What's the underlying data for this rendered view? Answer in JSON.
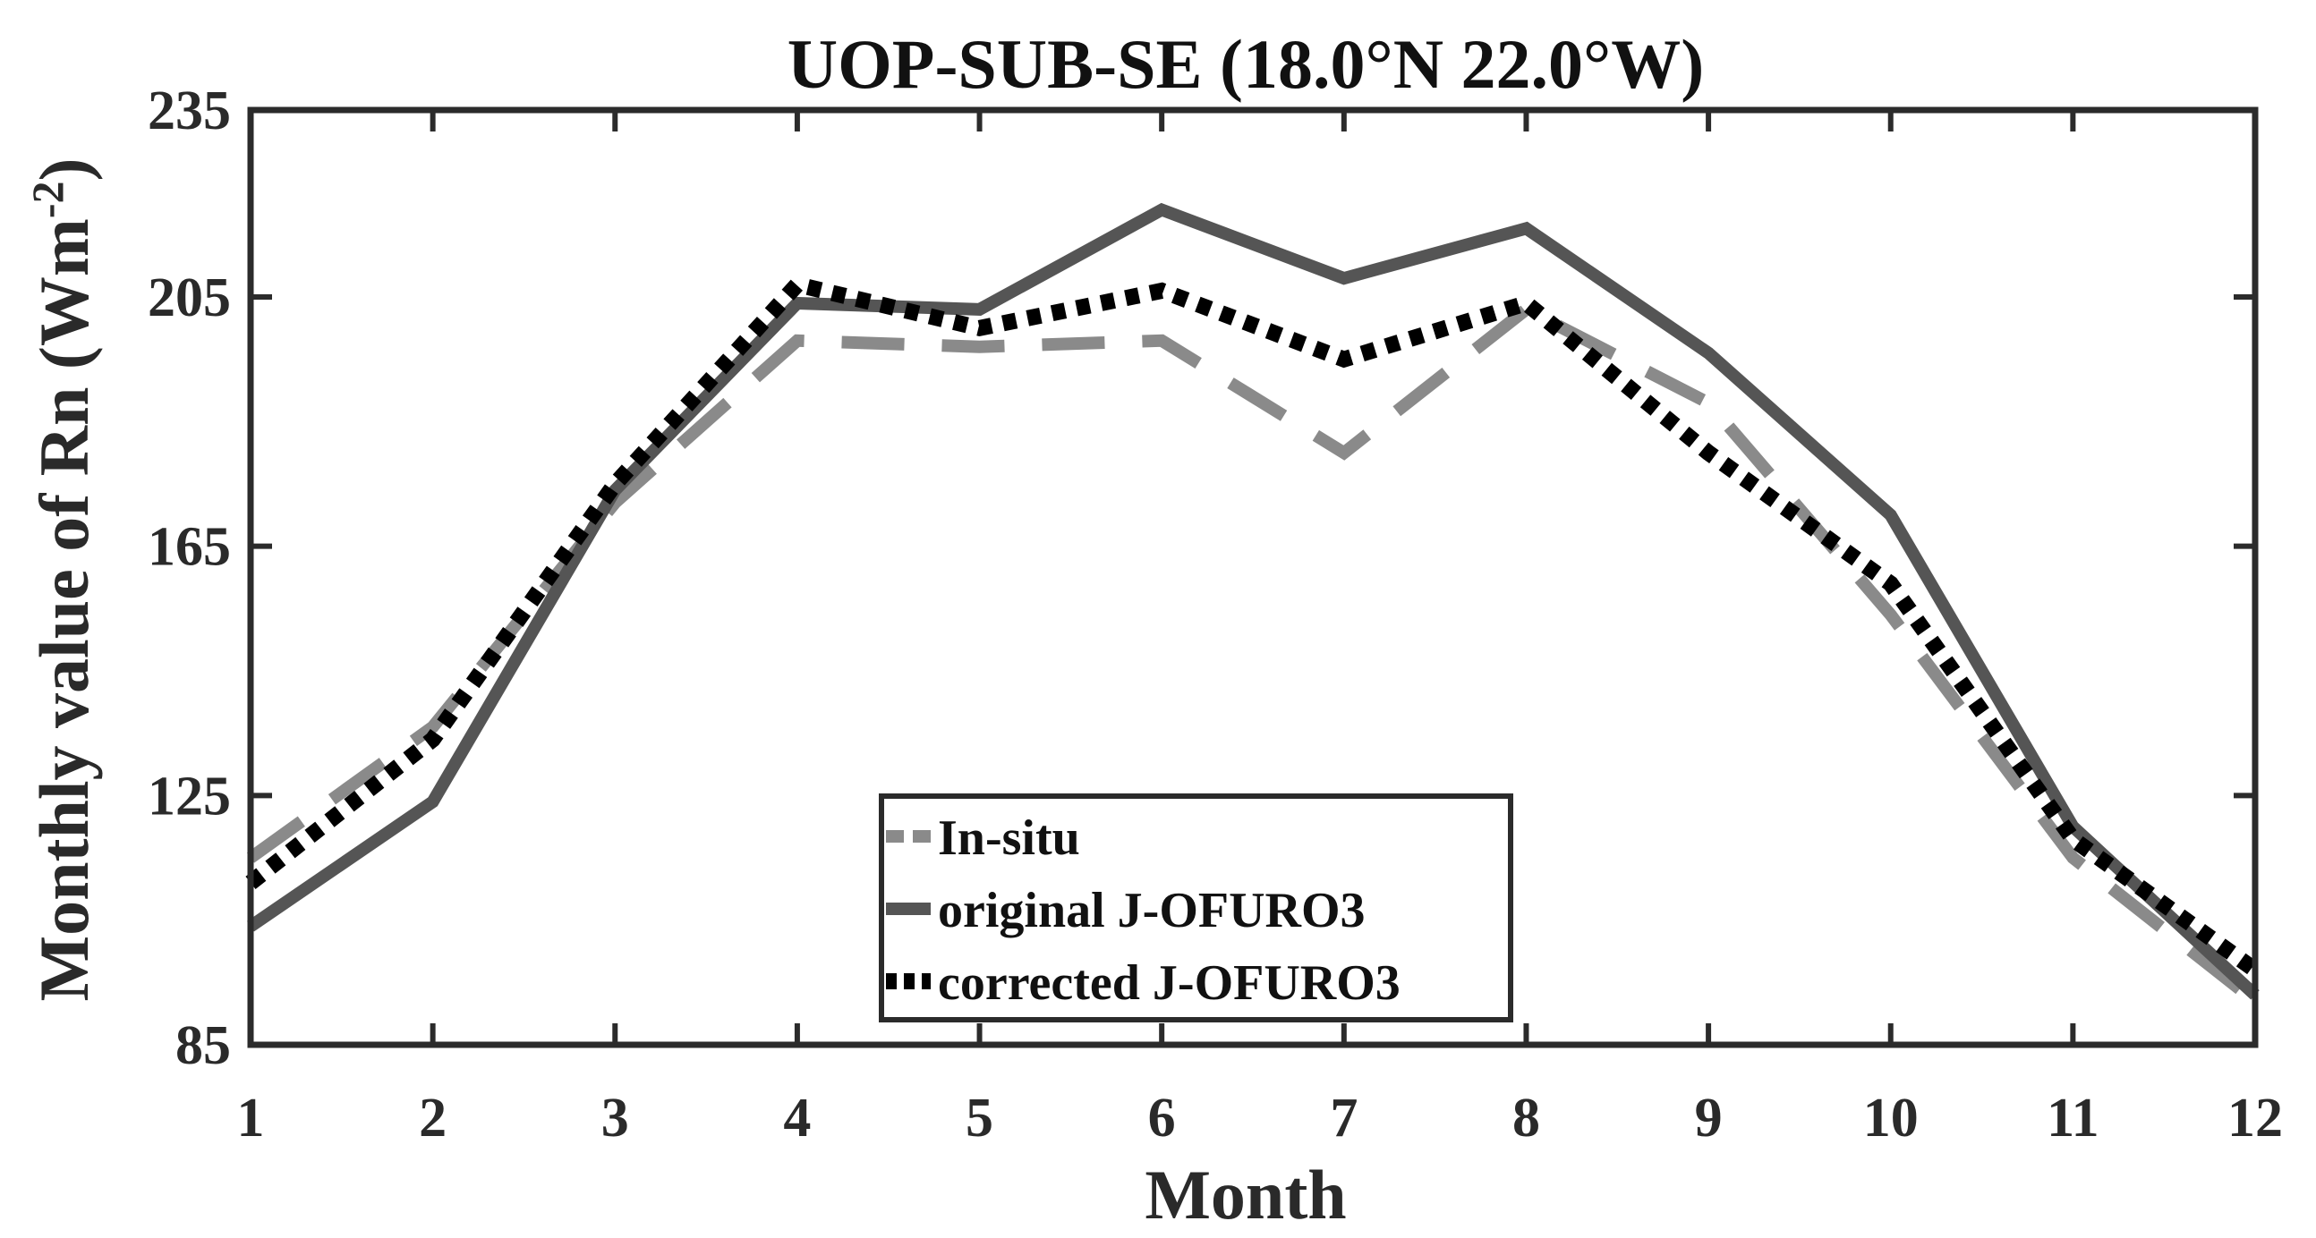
{
  "chart_data": {
    "type": "line",
    "title": "UOP-SUB-SE (18.0°N 22.0°W)",
    "xlabel": "Month",
    "ylabel": "Monthly value of Rn (Wm",
    "ylabel_sup": "-2",
    "ylabel_close": ")",
    "xlim": [
      1,
      12
    ],
    "ylim": [
      85,
      235
    ],
    "xticks": [
      1,
      2,
      3,
      4,
      5,
      6,
      7,
      8,
      9,
      10,
      11,
      12
    ],
    "yticks": [
      85,
      125,
      165,
      205,
      235
    ],
    "x": [
      1,
      2,
      3,
      4,
      5,
      6,
      7,
      8,
      9,
      10,
      11,
      12
    ],
    "grid": false,
    "legend_position": "bottom-center",
    "series": [
      {
        "name": "In-situ",
        "style": "dashed",
        "color": "#8a8a8a",
        "values": [
          115,
          136,
          172,
          198,
          197,
          198,
          180,
          203,
          188,
          154,
          115,
          92
        ]
      },
      {
        "name": "original J-OFURO3",
        "style": "solid",
        "color": "#555555",
        "values": [
          104,
          124,
          174,
          204,
          203,
          219,
          208,
          216,
          196,
          170,
          120,
          93
        ]
      },
      {
        "name": "corrected J-OFURO3",
        "style": "dotted",
        "color": "#000000",
        "values": [
          111,
          134,
          175,
          207,
          200,
          206,
          195,
          204,
          180,
          159,
          118,
          97
        ]
      }
    ]
  }
}
